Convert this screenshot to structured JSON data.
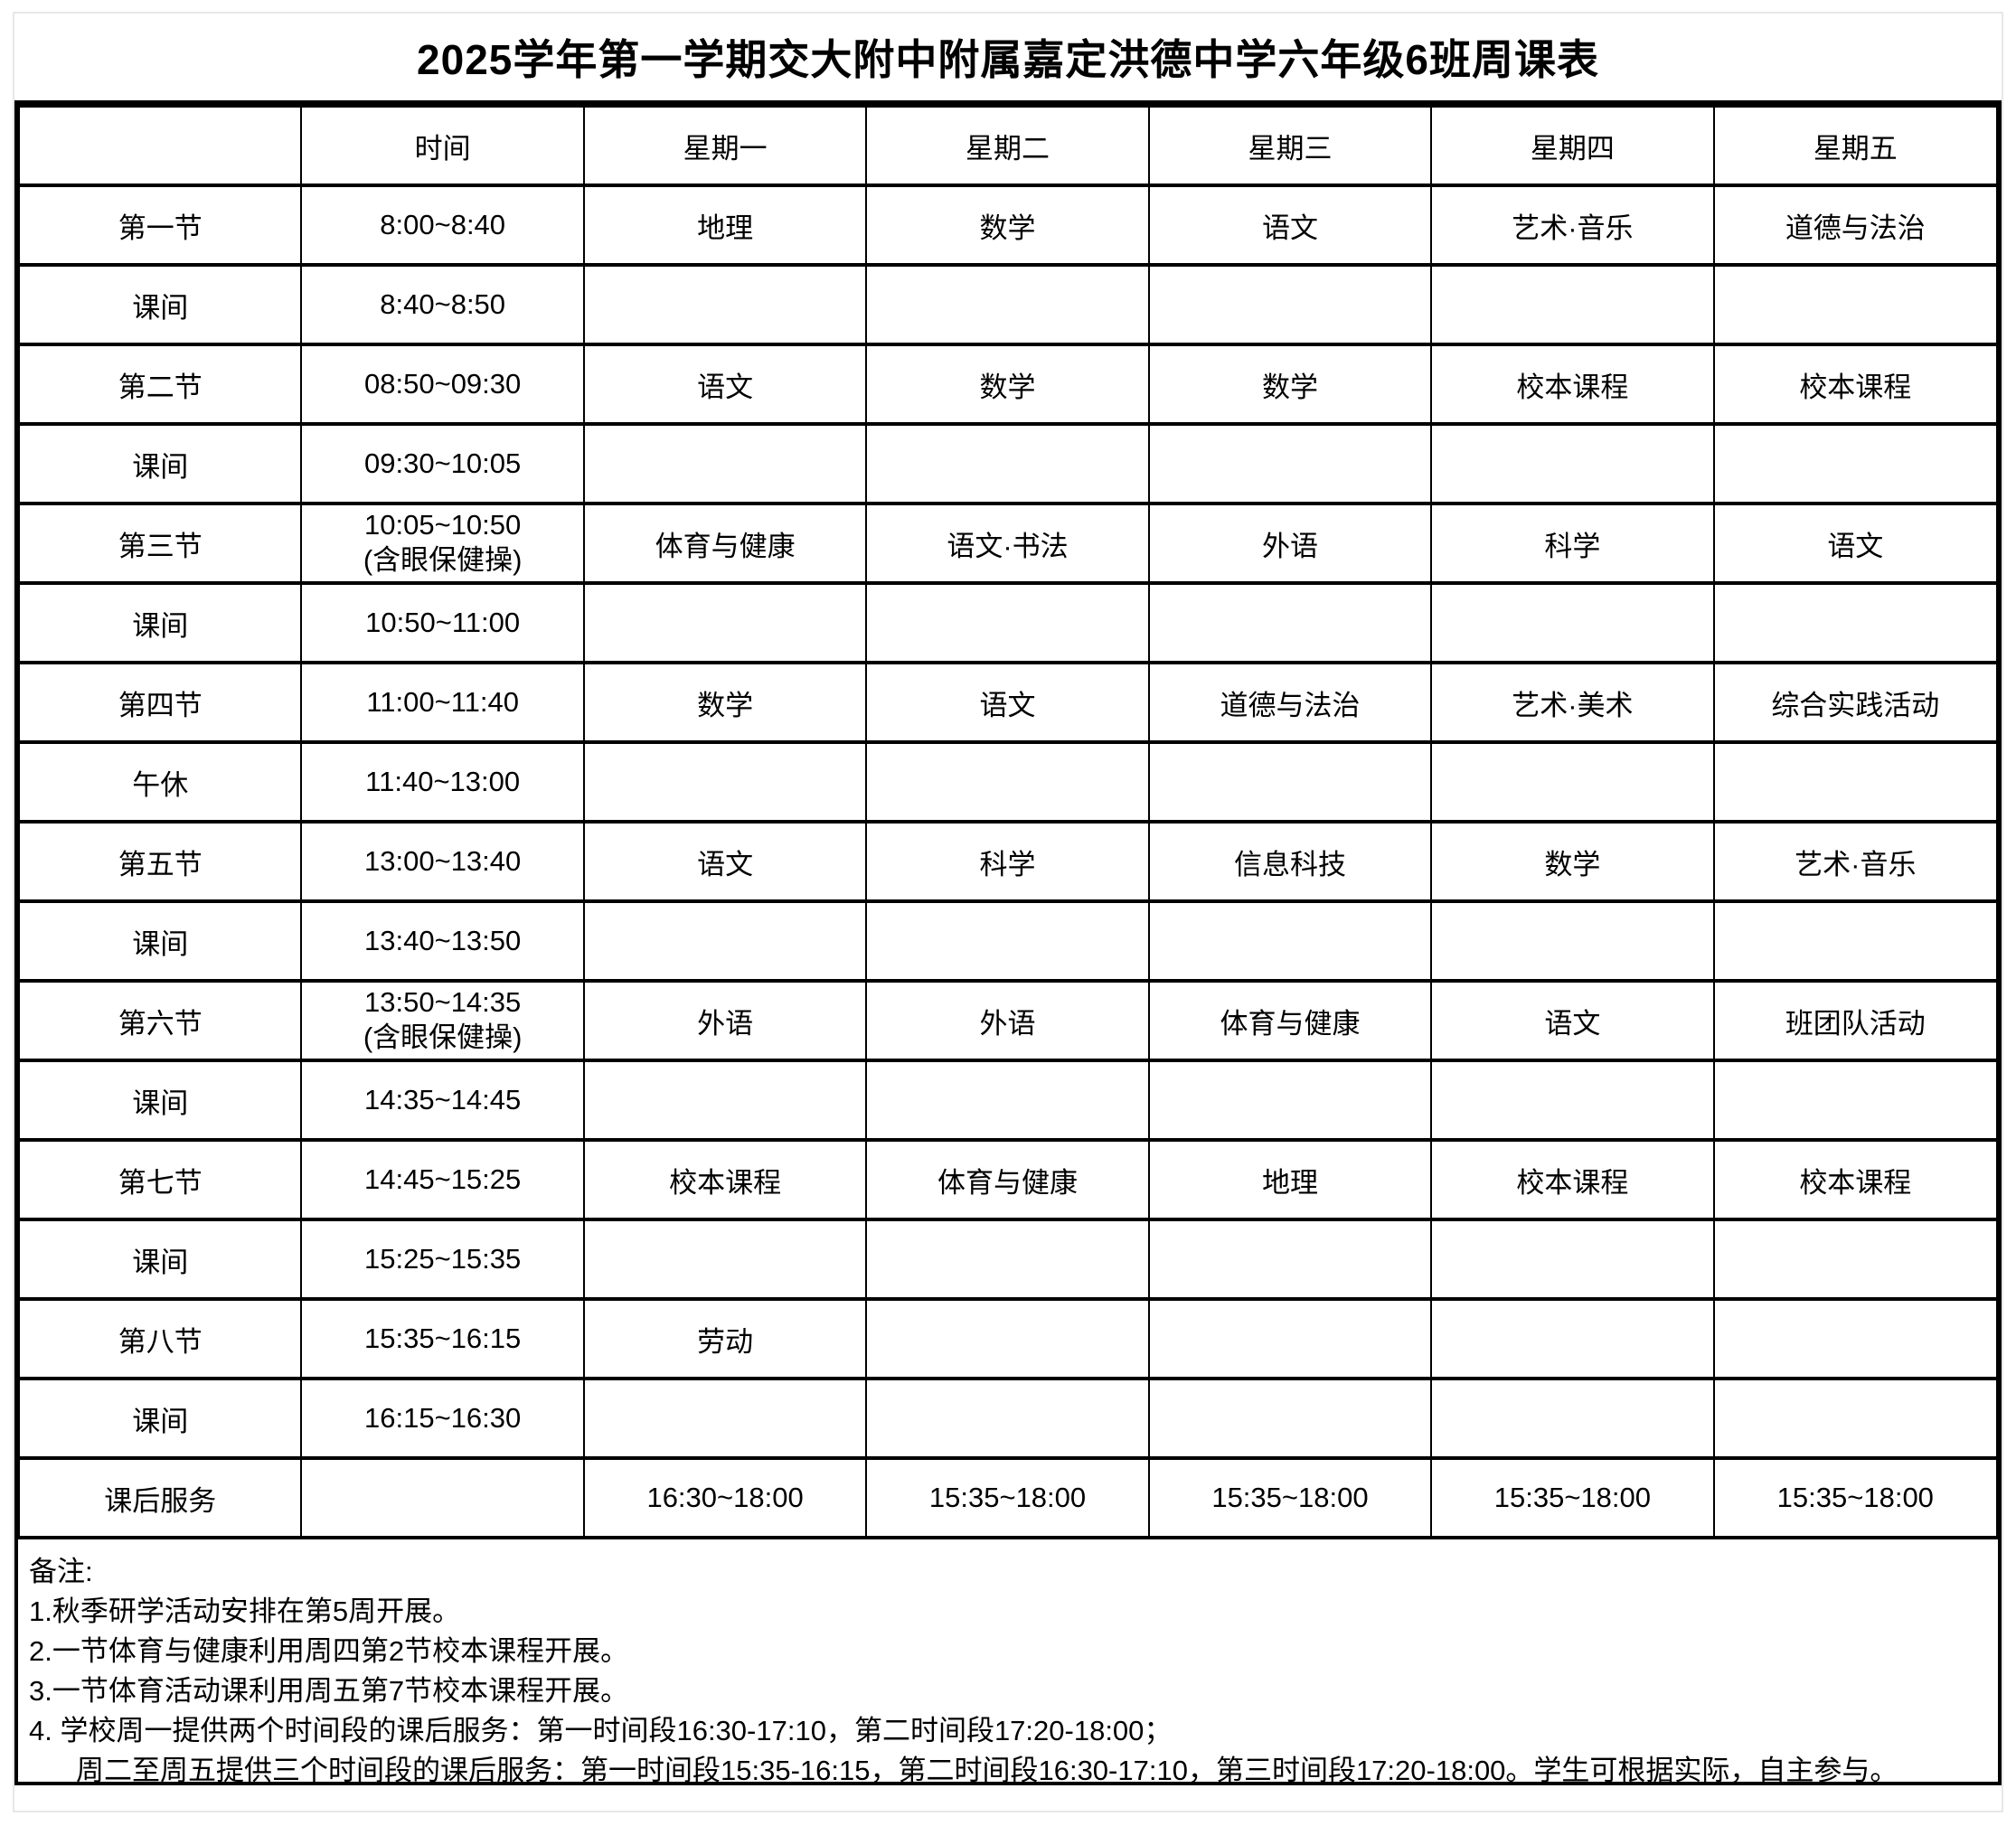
{
  "title": "2025学年第一学期交大附中附属嘉定洪德中学六年级6班周课表",
  "colors": {
    "text": "#000000",
    "table_border": "#000000",
    "sheet_outline": "#e7e7e7",
    "background": "#ffffff"
  },
  "table": {
    "header": {
      "corner": "",
      "time": "时间",
      "days": [
        "星期一",
        "星期二",
        "星期三",
        "星期四",
        "星期五"
      ]
    },
    "rows": [
      {
        "label": "第一节",
        "time": "8:00~8:40",
        "time_note": "",
        "cells": [
          "地理",
          "数学",
          "语文",
          "艺术·音乐",
          "道德与法治"
        ]
      },
      {
        "label": "课间",
        "time": "8:40~8:50",
        "time_note": "",
        "cells": [
          "",
          "",
          "",
          "",
          ""
        ]
      },
      {
        "label": "第二节",
        "time": "08:50~09:30",
        "time_note": "",
        "cells": [
          "语文",
          "数学",
          "数学",
          "校本课程",
          "校本课程"
        ]
      },
      {
        "label": "课间",
        "time": "09:30~10:05",
        "time_note": "",
        "cells": [
          "",
          "",
          "",
          "",
          ""
        ]
      },
      {
        "label": "第三节",
        "time": "10:05~10:50",
        "time_note": "(含眼保健操)",
        "cells": [
          "体育与健康",
          "语文·书法",
          "外语",
          "科学",
          "语文"
        ]
      },
      {
        "label": "课间",
        "time": "10:50~11:00",
        "time_note": "",
        "cells": [
          "",
          "",
          "",
          "",
          ""
        ]
      },
      {
        "label": "第四节",
        "time": "11:00~11:40",
        "time_note": "",
        "cells": [
          "数学",
          "语文",
          "道德与法治",
          "艺术·美术",
          "综合实践活动"
        ]
      },
      {
        "label": "午休",
        "time": "11:40~13:00",
        "time_note": "",
        "cells": [
          "",
          "",
          "",
          "",
          ""
        ]
      },
      {
        "label": "第五节",
        "time": "13:00~13:40",
        "time_note": "",
        "cells": [
          "语文",
          "科学",
          "信息科技",
          "数学",
          "艺术·音乐"
        ]
      },
      {
        "label": "课间",
        "time": "13:40~13:50",
        "time_note": "",
        "cells": [
          "",
          "",
          "",
          "",
          ""
        ]
      },
      {
        "label": "第六节",
        "time": "13:50~14:35",
        "time_note": "(含眼保健操)",
        "cells": [
          "外语",
          "外语",
          "体育与健康",
          "语文",
          "班团队活动"
        ]
      },
      {
        "label": "课间",
        "time": "14:35~14:45",
        "time_note": "",
        "cells": [
          "",
          "",
          "",
          "",
          ""
        ]
      },
      {
        "label": "第七节",
        "time": "14:45~15:25",
        "time_note": "",
        "cells": [
          "校本课程",
          "体育与健康",
          "地理",
          "校本课程",
          "校本课程"
        ]
      },
      {
        "label": "课间",
        "time": "15:25~15:35",
        "time_note": "",
        "cells": [
          "",
          "",
          "",
          "",
          ""
        ]
      },
      {
        "label": "第八节",
        "time": "15:35~16:15",
        "time_note": "",
        "cells": [
          "劳动",
          "",
          "",
          "",
          ""
        ]
      },
      {
        "label": "课间",
        "time": "16:15~16:30",
        "time_note": "",
        "cells": [
          "",
          "",
          "",
          "",
          ""
        ]
      },
      {
        "label": "课后服务",
        "time": "",
        "time_note": "",
        "cells": [
          "16:30~18:00",
          "15:35~18:00",
          "15:35~18:00",
          "15:35~18:00",
          "15:35~18:00"
        ]
      }
    ]
  },
  "notes": {
    "heading": "备注:",
    "lines": [
      "1.秋季研学活动安排在第5周开展。",
      "2.一节体育与健康利用周四第2节校本课程开展。",
      "3.一节体育活动课利用周五第7节校本课程开展。",
      "4. 学校周一提供两个时间段的课后服务：第一时间段16:30-17:10，第二时间段17:20-18:00；",
      "周二至周五提供三个时间段的课后服务：第一时间段15:35-16:15，第二时间段16:30-17:10，第三时间段17:20-18:00。学生可根据实际，自主参与。"
    ]
  }
}
